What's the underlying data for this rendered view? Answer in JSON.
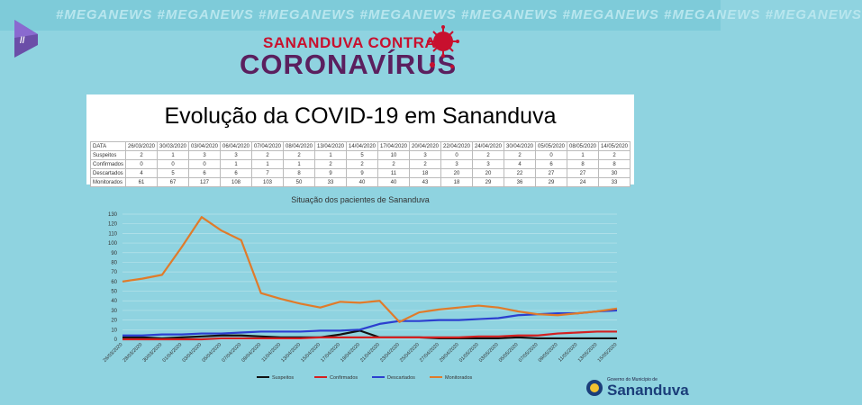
{
  "hashtags": "#MEGANEWS  #MEGANEWS  #MEGANEWS  #MEGANEWS  #MEGANEWS  #MEGANEWS  #MEGANEWS  #MEGANEWS",
  "brand": {
    "line1": "SANANDUVA CONTRA O",
    "line2": "CORONAVÍRUS"
  },
  "main_title": "Evolução da COVID-19 em Sananduva",
  "table": {
    "header_label": "DATA",
    "dates": [
      "26/03/2020",
      "30/03/2020",
      "03/04/2020",
      "06/04/2020",
      "07/04/2020",
      "08/04/2020",
      "13/04/2020",
      "14/04/2020",
      "17/04/2020",
      "20/04/2020",
      "22/04/2020",
      "24/04/2020",
      "30/04/2020",
      "05/05/2020",
      "08/05/2020",
      "14/05/2020"
    ],
    "rows": [
      {
        "label": "Suspeitos",
        "values": [
          "2",
          "1",
          "3",
          "3",
          "2",
          "2",
          "1",
          "5",
          "10",
          "3",
          "0",
          "2",
          "2",
          "0",
          "1",
          "2"
        ]
      },
      {
        "label": "Confirmados",
        "values": [
          "0",
          "0",
          "0",
          "1",
          "1",
          "1",
          "2",
          "2",
          "2",
          "2",
          "3",
          "3",
          "4",
          "6",
          "8",
          "8"
        ]
      },
      {
        "label": "Descartados",
        "values": [
          "4",
          "5",
          "6",
          "6",
          "7",
          "8",
          "9",
          "9",
          "11",
          "18",
          "20",
          "20",
          "22",
          "27",
          "27",
          "30"
        ]
      },
      {
        "label": "Monitorados",
        "values": [
          "61",
          "67",
          "127",
          "108",
          "103",
          "50",
          "33",
          "40",
          "40",
          "43",
          "18",
          "29",
          "36",
          "29",
          "24",
          "33"
        ]
      }
    ]
  },
  "chart_data": {
    "type": "line",
    "title": "Situação dos pacientes de Sananduva",
    "ylim": [
      0,
      130
    ],
    "yticks": [
      0,
      10,
      20,
      30,
      40,
      50,
      60,
      70,
      80,
      90,
      100,
      110,
      120,
      130
    ],
    "categories": [
      "26/03/2020",
      "28/03/2020",
      "30/03/2020",
      "01/04/2020",
      "03/04/2020",
      "05/04/2020",
      "07/04/2020",
      "09/04/2020",
      "11/04/2020",
      "13/04/2020",
      "15/04/2020",
      "17/04/2020",
      "19/04/2020",
      "21/04/2020",
      "23/04/2020",
      "25/04/2020",
      "27/04/2020",
      "29/04/2020",
      "01/05/2020",
      "03/05/2020",
      "05/05/2020",
      "07/05/2020",
      "09/05/2020",
      "11/05/2020",
      "13/05/2020",
      "15/05/2020"
    ],
    "series": [
      {
        "name": "Suspeitos",
        "color": "#111111",
        "values": [
          2,
          2,
          1,
          2,
          3,
          4,
          4,
          3,
          2,
          2,
          2,
          5,
          9,
          2,
          2,
          2,
          1,
          1,
          1,
          1,
          2,
          1,
          1,
          1,
          1,
          1
        ]
      },
      {
        "name": "Confirmados",
        "color": "#d42020",
        "values": [
          0,
          0,
          0,
          0,
          0,
          1,
          1,
          1,
          1,
          1,
          2,
          2,
          2,
          2,
          2,
          2,
          2,
          2,
          3,
          3,
          4,
          4,
          6,
          7,
          8,
          8
        ]
      },
      {
        "name": "Descartados",
        "color": "#2c3fcf",
        "values": [
          4,
          4,
          5,
          5,
          6,
          6,
          7,
          8,
          8,
          8,
          9,
          9,
          10,
          16,
          19,
          19,
          20,
          20,
          21,
          22,
          25,
          26,
          27,
          27,
          29,
          30
        ]
      },
      {
        "name": "Monitorados",
        "color": "#e07b2a",
        "values": [
          60,
          63,
          67,
          96,
          127,
          113,
          103,
          48,
          42,
          37,
          33,
          39,
          38,
          40,
          18,
          28,
          31,
          33,
          35,
          33,
          29,
          26,
          25,
          27,
          29,
          32
        ]
      }
    ]
  },
  "footer": {
    "small": "Governo do Município de",
    "big": "Sananduva"
  }
}
